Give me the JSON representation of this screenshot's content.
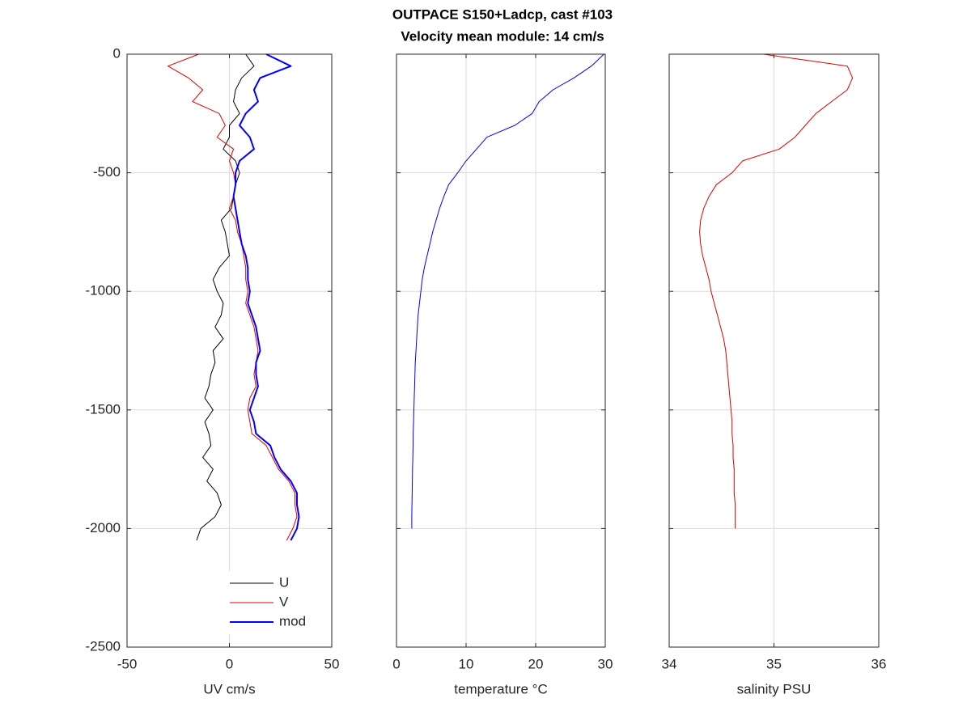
{
  "chart_data": [
    {
      "type": "line",
      "title": "OUTPACE S150+Ladcp, cast #103",
      "subtitle": "Velocity mean module:  14 cm/s",
      "xlabel": "UV cm/s",
      "xlim": [
        -50,
        50
      ],
      "xticks": [
        -50,
        0,
        50
      ],
      "ylim": [
        -2500,
        0
      ],
      "yticks": [
        -2500,
        -2000,
        -1500,
        -1000,
        -500,
        0
      ],
      "yticklabels": true,
      "grid": true,
      "legend": "lower right",
      "y": [
        0,
        -50,
        -100,
        -150,
        -200,
        -250,
        -300,
        -350,
        -400,
        -450,
        -500,
        -550,
        -600,
        -650,
        -700,
        -750,
        -800,
        -850,
        -900,
        -950,
        -1000,
        -1050,
        -1100,
        -1150,
        -1200,
        -1250,
        -1300,
        -1350,
        -1400,
        -1450,
        -1500,
        -1550,
        -1600,
        -1650,
        -1700,
        -1750,
        -1800,
        -1850,
        -1900,
        -1950,
        -2000,
        -2050
      ],
      "series": [
        {
          "name": "U",
          "color": "#000000",
          "width": 1,
          "values": [
            8,
            12,
            6,
            3,
            2,
            5,
            0,
            0,
            -3,
            3,
            5,
            3,
            2,
            1,
            -4,
            -2,
            -1,
            0,
            -5,
            -8,
            -6,
            -3,
            -4,
            -7,
            -3,
            -8,
            -7,
            -9,
            -10,
            -12,
            -8,
            -12,
            -10,
            -9,
            -13,
            -8,
            -11,
            -6,
            -4,
            -7,
            -14,
            -16
          ]
        },
        {
          "name": "V",
          "color": "#e00000",
          "width": 1,
          "values": [
            -15,
            -30,
            -20,
            -13,
            -18,
            -5,
            -2,
            -6,
            2,
            0,
            2,
            3,
            2,
            0,
            3,
            4,
            6,
            7,
            8,
            8,
            9,
            8,
            10,
            12,
            13,
            14,
            13,
            12,
            13,
            10,
            9,
            10,
            11,
            18,
            21,
            24,
            29,
            32,
            32,
            33,
            31,
            28
          ]
        },
        {
          "name": "mod",
          "color": "#0000ff",
          "width": 2,
          "values": [
            18,
            30,
            15,
            12,
            14,
            8,
            5,
            10,
            12,
            5,
            3,
            3,
            2,
            3,
            4,
            5,
            6,
            8,
            9,
            9,
            10,
            9,
            11,
            13,
            14,
            15,
            13,
            13,
            14,
            12,
            10,
            12,
            13,
            20,
            22,
            25,
            30,
            33,
            33,
            34,
            33,
            30
          ]
        }
      ]
    },
    {
      "type": "line",
      "xlabel": "temperature °C",
      "xlim": [
        0,
        30
      ],
      "xticks": [
        0,
        10,
        20,
        30
      ],
      "ylim": [
        -2500,
        0
      ],
      "yticks": [
        -2500,
        -2000,
        -1500,
        -1000,
        -500,
        0
      ],
      "yticklabels": false,
      "grid": true,
      "y": [
        0,
        -50,
        -100,
        -150,
        -200,
        -250,
        -300,
        -350,
        -400,
        -450,
        -500,
        -550,
        -600,
        -650,
        -700,
        -750,
        -800,
        -850,
        -900,
        -950,
        -1000,
        -1050,
        -1100,
        -1150,
        -1200,
        -1250,
        -1300,
        -1350,
        -1400,
        -1450,
        -1500,
        -1550,
        -1600,
        -1650,
        -1700,
        -1750,
        -1800,
        -1850,
        -1900,
        -1950,
        -2000
      ],
      "series": [
        {
          "color": "#0000ff",
          "width": 1,
          "values": [
            29.8,
            28,
            25.5,
            22.5,
            20.5,
            19.5,
            17,
            13,
            11.5,
            10,
            8.8,
            7.5,
            6.8,
            6.2,
            5.7,
            5.2,
            4.8,
            4.4,
            4.0,
            3.7,
            3.5,
            3.3,
            3.1,
            3.0,
            2.9,
            2.8,
            2.7,
            2.65,
            2.6,
            2.55,
            2.5,
            2.45,
            2.4,
            2.38,
            2.35,
            2.3,
            2.28,
            2.25,
            2.22,
            2.2,
            2.2
          ]
        }
      ]
    },
    {
      "type": "line",
      "xlabel": "salinity PSU",
      "xlim": [
        34,
        36
      ],
      "xticks": [
        34,
        35,
        36
      ],
      "ylim": [
        -2500,
        0
      ],
      "yticks": [
        -2500,
        -2000,
        -1500,
        -1000,
        -500,
        0
      ],
      "yticklabels": false,
      "grid": true,
      "y": [
        0,
        -50,
        -100,
        -150,
        -200,
        -250,
        -300,
        -350,
        -400,
        -450,
        -500,
        -550,
        -600,
        -650,
        -700,
        -750,
        -800,
        -850,
        -900,
        -950,
        -1000,
        -1050,
        -1100,
        -1150,
        -1200,
        -1250,
        -1300,
        -1350,
        -1400,
        -1450,
        -1500,
        -1550,
        -1600,
        -1650,
        -1700,
        -1750,
        -1800,
        -1850,
        -1900,
        -1950,
        -2000
      ],
      "series": [
        {
          "color": "#e00000",
          "width": 1,
          "values": [
            34.9,
            35.7,
            35.75,
            35.7,
            35.55,
            35.4,
            35.3,
            35.2,
            35.05,
            34.7,
            34.6,
            34.45,
            34.38,
            34.33,
            34.3,
            34.29,
            34.3,
            34.32,
            34.35,
            34.38,
            34.4,
            34.43,
            34.46,
            34.49,
            34.52,
            34.54,
            34.55,
            34.56,
            34.57,
            34.58,
            34.59,
            34.6,
            34.6,
            34.61,
            34.61,
            34.62,
            34.62,
            34.62,
            34.63,
            34.63,
            34.63
          ]
        }
      ]
    }
  ]
}
